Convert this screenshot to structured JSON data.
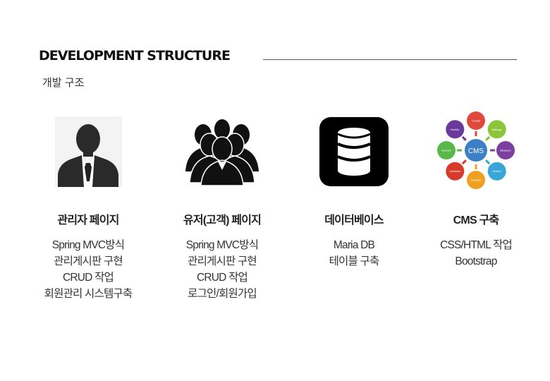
{
  "header": {
    "title": "DEVELOPMENT STRUCTURE",
    "subtitle": "개발 구조"
  },
  "columns": [
    {
      "title": "관리자 페이지",
      "icon": "admin-user-icon",
      "items": [
        "Spring MVC방식",
        "관리게시판 구현",
        "CRUD 작업",
        "회원관리 시스템구축"
      ]
    },
    {
      "title": "유저(고객) 페이지",
      "icon": "users-group-icon",
      "items": [
        "Spring MVC방식",
        "관리게시판 구현",
        "CRUD 작업",
        "로그인/회원가입"
      ]
    },
    {
      "title": "데이터베이스",
      "icon": "database-icon",
      "items": [
        "Maria DB",
        "테이블 구축"
      ]
    },
    {
      "title": "CMS 구축",
      "icon": "cms-diagram-icon",
      "items": [
        "CSS/HTML 작업",
        "Bootstrap"
      ]
    }
  ],
  "cms_diagram": {
    "center": "CMS",
    "nodes": [
      "Create",
      "Manage",
      "Measure",
      "Deliver",
      "Develop",
      "Optimize",
      "Extend",
      "Modify"
    ]
  },
  "colors": {
    "title": "#111111",
    "rule": "#555555",
    "database_bg": "#000000",
    "cms_center": "#3b7fc4",
    "cms_nodes": [
      "#e04a3a",
      "#8cc43a",
      "#7b3fa0",
      "#3aa6d8",
      "#f0a020",
      "#d83a2a",
      "#5ab84a",
      "#6a3a9a"
    ]
  }
}
